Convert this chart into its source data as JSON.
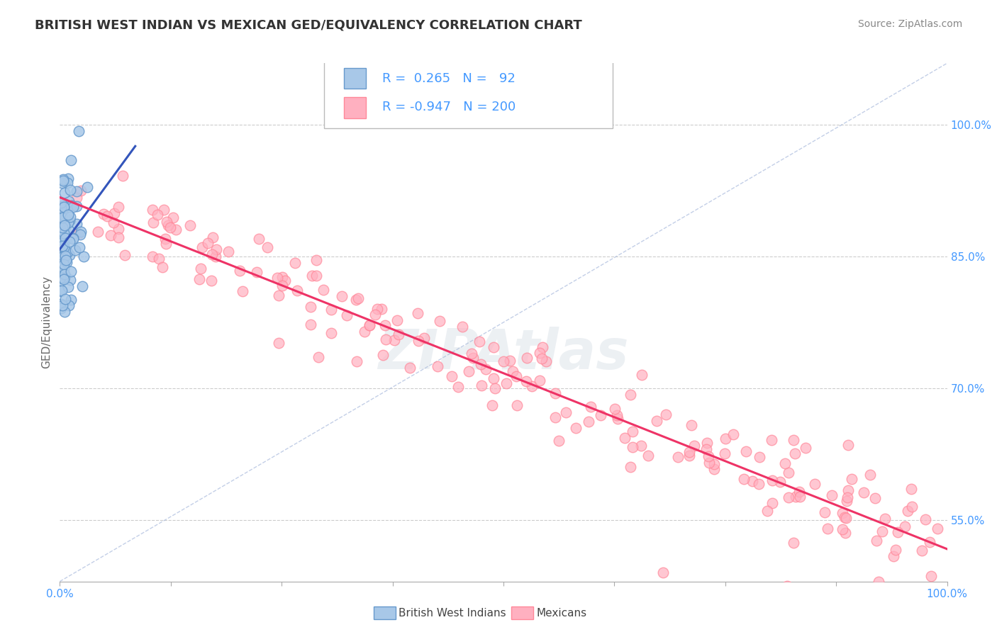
{
  "title": "BRITISH WEST INDIAN VS MEXICAN GED/EQUIVALENCY CORRELATION CHART",
  "source": "Source: ZipAtlas.com",
  "ylabel": "GED/Equivalency",
  "right_yticks": [
    55.0,
    70.0,
    85.0,
    100.0
  ],
  "xlim": [
    0.0,
    100.0
  ],
  "ylim": [
    48.0,
    107.0
  ],
  "blue_r": 0.265,
  "blue_n": 92,
  "pink_r": -0.947,
  "pink_n": 200,
  "blue_face_color": "#A8C8E8",
  "blue_edge_color": "#6699CC",
  "pink_face_color": "#FFB0C0",
  "pink_edge_color": "#FF8899",
  "blue_line_color": "#3355BB",
  "pink_line_color": "#EE3366",
  "legend_blue_label": "British West Indians",
  "legend_pink_label": "Mexicans",
  "background_color": "#FFFFFF",
  "grid_color": "#CCCCCC",
  "title_color": "#333333",
  "axis_label_color": "#4499FF",
  "watermark": "ZIPAtlas",
  "title_fontsize": 13,
  "source_fontsize": 10,
  "legend_fontsize": 14,
  "scatter_size": 110,
  "diag_line_color": "#AABBDD"
}
